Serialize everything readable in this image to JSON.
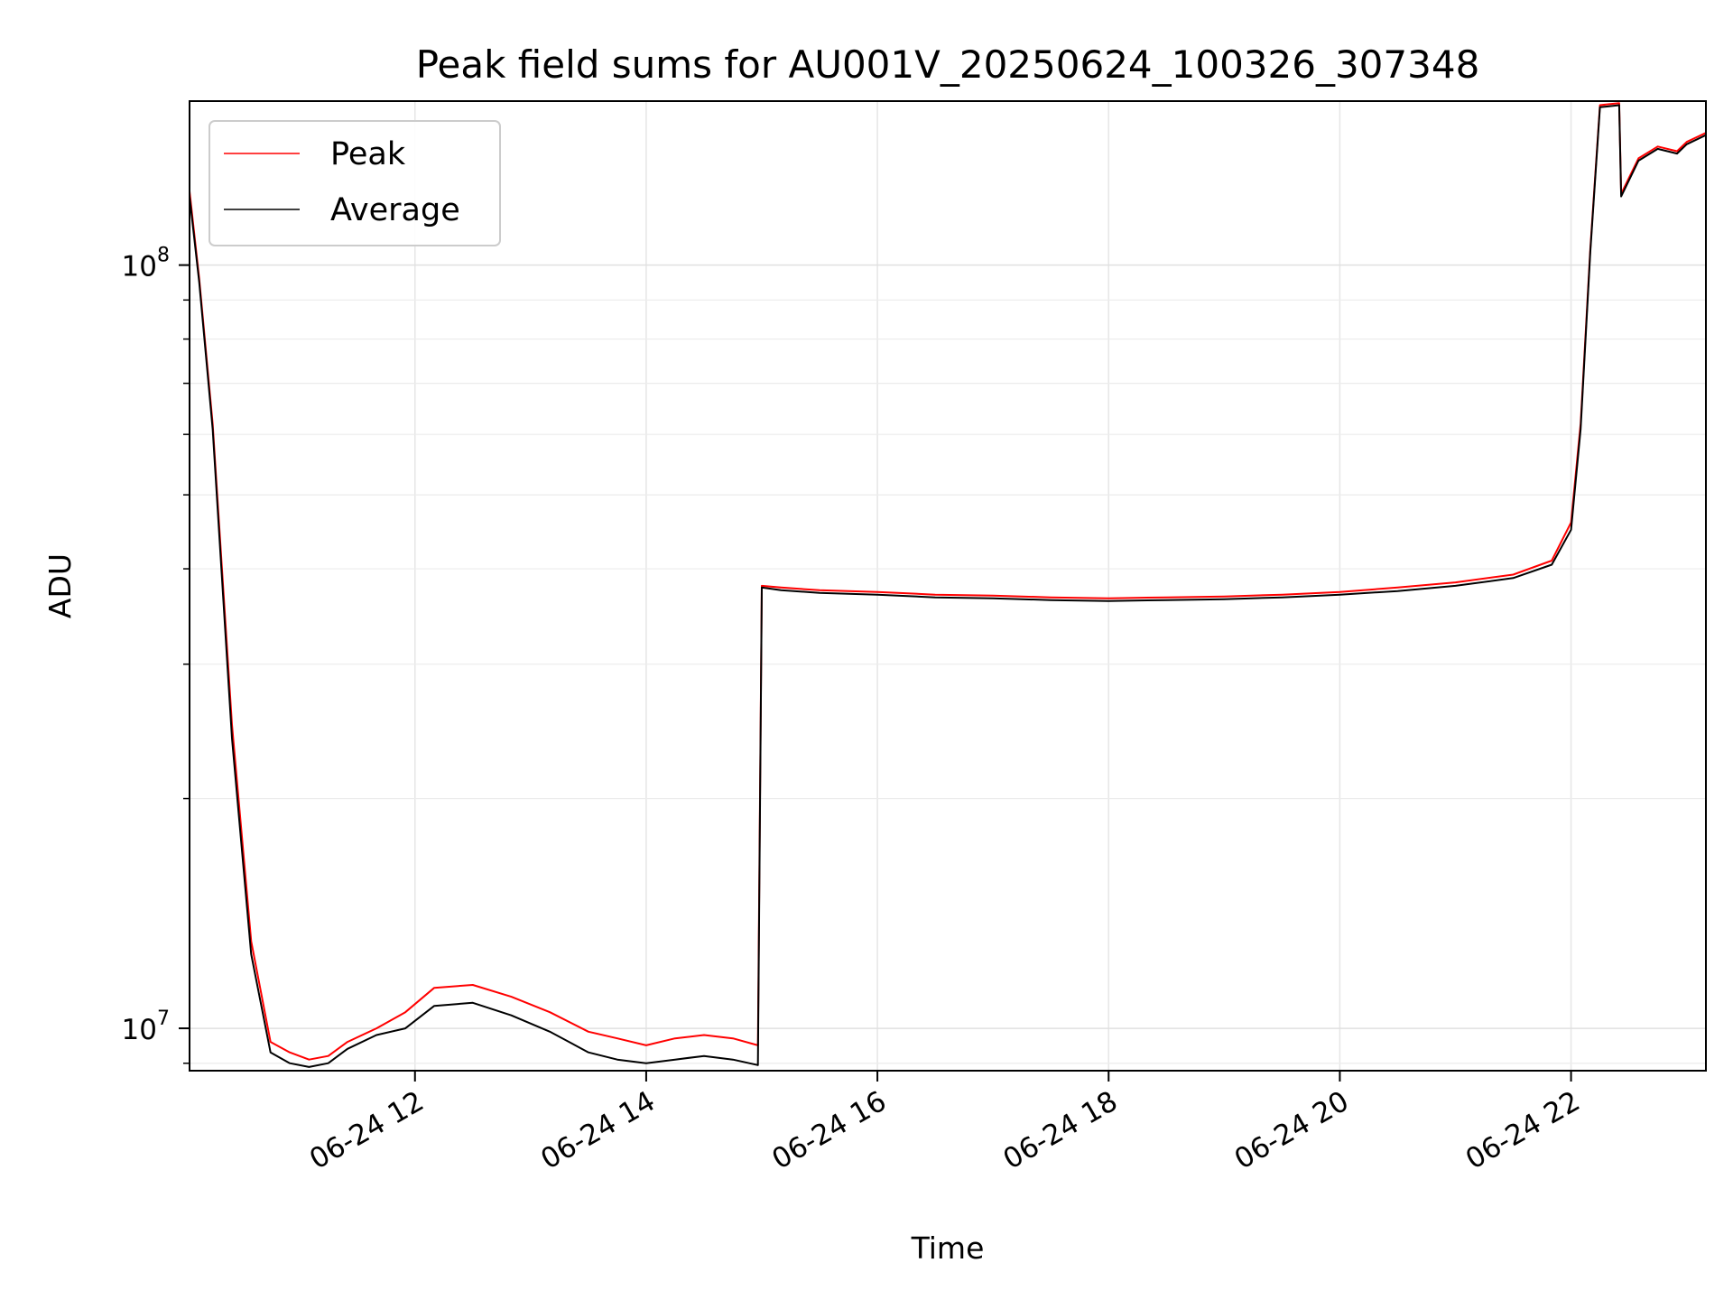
{
  "chart_data": {
    "type": "line",
    "title": "Peak field sums for AU001V_20250624_100326_307348",
    "xlabel": "Time",
    "ylabel": "ADU",
    "yscale": "log",
    "grid": true,
    "legend_placement": "top-left",
    "x_range": [
      "2025-06-24 10:03",
      "2025-06-24 23:10"
    ],
    "ylim": [
      8800000,
      164000000
    ],
    "x_ticks": [
      "06-24 12",
      "06-24 14",
      "06-24 16",
      "06-24 18",
      "06-24 20",
      "06-24 22"
    ],
    "y_ticks": [
      {
        "value": 10000000,
        "base": "10",
        "exp": "7"
      },
      {
        "value": 100000000,
        "base": "10",
        "exp": "8"
      }
    ],
    "series": [
      {
        "name": "Peak",
        "color": "#ff0000",
        "x": [
          "10:03",
          "10:08",
          "10:15",
          "10:25",
          "10:35",
          "10:45",
          "10:55",
          "11:05",
          "11:15",
          "11:25",
          "11:40",
          "11:55",
          "12:10",
          "12:30",
          "12:50",
          "13:10",
          "13:30",
          "13:45",
          "14:00",
          "14:15",
          "14:30",
          "14:45",
          "14:58",
          "15:00",
          "15:10",
          "15:30",
          "16:00",
          "16:30",
          "17:00",
          "17:30",
          "18:00",
          "18:30",
          "19:00",
          "19:30",
          "20:00",
          "20:30",
          "21:00",
          "21:30",
          "21:50",
          "22:00",
          "22:05",
          "22:10",
          "22:15",
          "22:25",
          "22:26",
          "22:35",
          "22:45",
          "22:55",
          "23:00",
          "23:10"
        ],
        "values": [
          125000000,
          96000000,
          62000000,
          25000000,
          13000000,
          9600000,
          9300000,
          9100000,
          9200000,
          9600000,
          10000000,
          10500000,
          11300000,
          11400000,
          11000000,
          10500000,
          9900000,
          9700000,
          9500000,
          9700000,
          9800000,
          9700000,
          9500000,
          38000000,
          37800000,
          37500000,
          37300000,
          37000000,
          36900000,
          36700000,
          36600000,
          36700000,
          36800000,
          37000000,
          37300000,
          37800000,
          38400000,
          39300000,
          41000000,
          46000000,
          62000000,
          105000000,
          162000000,
          163000000,
          124000000,
          138000000,
          143000000,
          141000000,
          145000000,
          149000000
        ]
      },
      {
        "name": "Average",
        "color": "#000000",
        "x": [
          "10:03",
          "10:08",
          "10:15",
          "10:25",
          "10:35",
          "10:45",
          "10:55",
          "11:05",
          "11:15",
          "11:25",
          "11:40",
          "11:55",
          "12:10",
          "12:30",
          "12:50",
          "13:10",
          "13:30",
          "13:45",
          "14:00",
          "14:15",
          "14:30",
          "14:45",
          "14:58",
          "15:00",
          "15:10",
          "15:30",
          "16:00",
          "16:30",
          "17:00",
          "17:30",
          "18:00",
          "18:30",
          "19:00",
          "19:30",
          "20:00",
          "20:30",
          "21:00",
          "21:30",
          "21:50",
          "22:00",
          "22:05",
          "22:10",
          "22:15",
          "22:25",
          "22:26",
          "22:35",
          "22:45",
          "22:55",
          "23:00",
          "23:10"
        ],
        "values": [
          123000000,
          95000000,
          61000000,
          24000000,
          12500000,
          9300000,
          9000000,
          8900000,
          9000000,
          9400000,
          9800000,
          10000000,
          10700000,
          10800000,
          10400000,
          9900000,
          9300000,
          9100000,
          9000000,
          9100000,
          9200000,
          9100000,
          8950000,
          37800000,
          37500000,
          37200000,
          37000000,
          36700000,
          36600000,
          36400000,
          36300000,
          36400000,
          36500000,
          36700000,
          37000000,
          37400000,
          38000000,
          38900000,
          40500000,
          45000000,
          61000000,
          104000000,
          161000000,
          162000000,
          123000000,
          137000000,
          142000000,
          140000000,
          144000000,
          148000000
        ]
      }
    ]
  }
}
